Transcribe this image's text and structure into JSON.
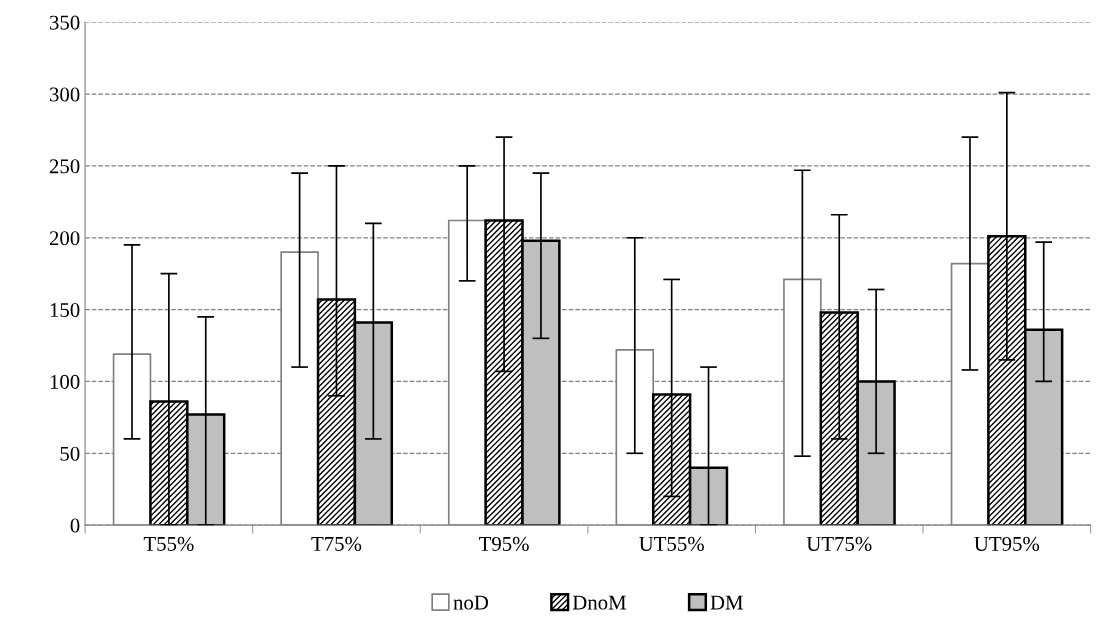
{
  "chart_data": {
    "type": "bar",
    "categories": [
      "T55%",
      "T75%",
      "T95%",
      "UT55%",
      "UT75%",
      "UT95%"
    ],
    "series": [
      {
        "name": "noD",
        "color": "#ffffff",
        "values": [
          119,
          190,
          212,
          122,
          171,
          182
        ],
        "errors": [
          [
            60,
            195
          ],
          [
            110,
            245
          ],
          [
            170,
            250
          ],
          [
            50,
            200
          ],
          [
            48,
            247
          ],
          [
            108,
            270
          ]
        ]
      },
      {
        "name": "DnoM",
        "color": "#000000",
        "values": [
          86,
          157,
          212,
          91,
          148,
          201
        ],
        "errors": [
          [
            0,
            175
          ],
          [
            90,
            250
          ],
          [
            107,
            270
          ],
          [
            20,
            171
          ],
          [
            60,
            216
          ],
          [
            115,
            301
          ]
        ]
      },
      {
        "name": "DM",
        "color": "#bfbfbf",
        "values": [
          77,
          141,
          198,
          40,
          100,
          136
        ],
        "errors": [
          [
            0,
            145
          ],
          [
            60,
            210
          ],
          [
            130,
            245
          ],
          [
            0,
            110
          ],
          [
            50,
            164
          ],
          [
            100,
            197
          ]
        ]
      }
    ],
    "ylim": [
      0,
      350
    ],
    "yticks": [
      0,
      50,
      100,
      150,
      200,
      250,
      300,
      350
    ],
    "grid": "y",
    "legend": "bottom"
  }
}
